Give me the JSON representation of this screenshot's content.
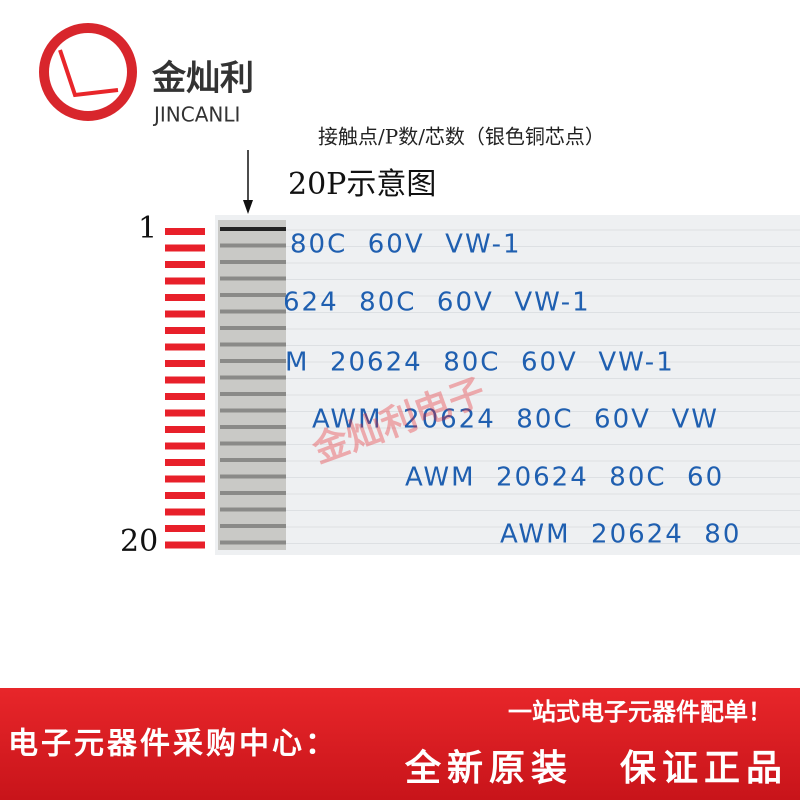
{
  "header": {
    "brand": "金灿利",
    "brand_en": "JINCANLI"
  },
  "annotation": {
    "caption": "接触点/P数/芯数（银色铜芯点）",
    "title": "20P示意图"
  },
  "pins": {
    "first": "1",
    "last": "20"
  },
  "cable": {
    "print_lines": [
      "80C  60V  VW-1",
      "624  80C  60V  VW-1",
      "M  20624  80C  60V  VW-1",
      "AWM  20624  80C  60V  VW",
      "AWM  20624  80C  60",
      "AWM  20624  80"
    ],
    "watermark": "金灿利电子"
  },
  "banner": {
    "slogan": "一站式电子元器件配单！",
    "center": "电子元器件采购中心：",
    "badge_left": "全新原装",
    "badge_right": "保证正品"
  }
}
